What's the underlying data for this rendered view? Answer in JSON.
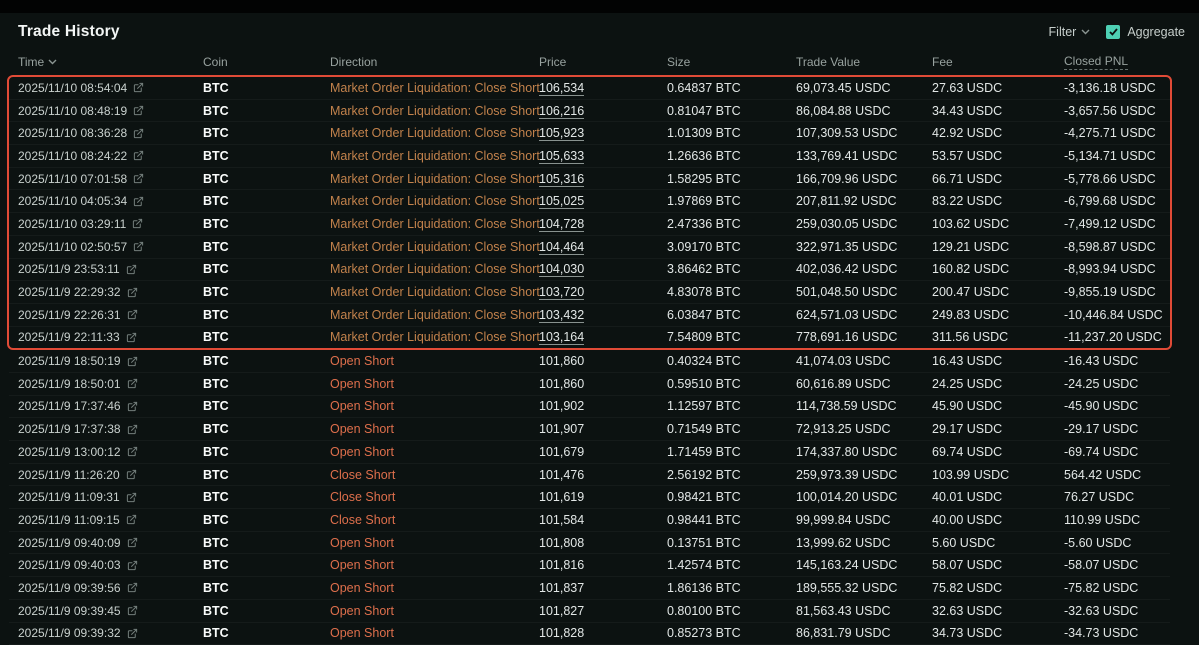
{
  "page": {
    "title": "Trade History"
  },
  "toolbar": {
    "filter_label": "Filter",
    "aggregate_label": "Aggregate",
    "aggregate_checked": true
  },
  "icons": {
    "external_link": "external-link",
    "chevron_down": "chevron-down",
    "checkmark": "check"
  },
  "colors": {
    "background": "#0c1211",
    "highlight_box_border": "#e14b37",
    "liquidation_text": "#c2824c",
    "short_text": "#de6f4c",
    "checkbox_accent": "#4ed0b4"
  },
  "table": {
    "columns": [
      "Time",
      "Coin",
      "Direction",
      "Price",
      "Size",
      "Trade Value",
      "Fee",
      "Closed PNL"
    ],
    "rows": [
      {
        "time": "2025/11/10 08:54:04",
        "coin": "BTC",
        "direction": "Market Order Liquidation: Close Short",
        "dir": "liq",
        "price": "106,534",
        "price_u": true,
        "size": "0.64837 BTC",
        "value": "69,073.45 USDC",
        "fee": "27.63 USDC",
        "pnl": "-3,136.18 USDC",
        "hl": true
      },
      {
        "time": "2025/11/10 08:48:19",
        "coin": "BTC",
        "direction": "Market Order Liquidation: Close Short",
        "dir": "liq",
        "price": "106,216",
        "price_u": true,
        "size": "0.81047 BTC",
        "value": "86,084.88 USDC",
        "fee": "34.43 USDC",
        "pnl": "-3,657.56 USDC",
        "hl": true
      },
      {
        "time": "2025/11/10 08:36:28",
        "coin": "BTC",
        "direction": "Market Order Liquidation: Close Short",
        "dir": "liq",
        "price": "105,923",
        "price_u": true,
        "size": "1.01309 BTC",
        "value": "107,309.53 USDC",
        "fee": "42.92 USDC",
        "pnl": "-4,275.71 USDC",
        "hl": true
      },
      {
        "time": "2025/11/10 08:24:22",
        "coin": "BTC",
        "direction": "Market Order Liquidation: Close Short",
        "dir": "liq",
        "price": "105,633",
        "price_u": true,
        "size": "1.26636 BTC",
        "value": "133,769.41 USDC",
        "fee": "53.57 USDC",
        "pnl": "-5,134.71 USDC",
        "hl": true
      },
      {
        "time": "2025/11/10 07:01:58",
        "coin": "BTC",
        "direction": "Market Order Liquidation: Close Short",
        "dir": "liq",
        "price": "105,316",
        "price_u": true,
        "size": "1.58295 BTC",
        "value": "166,709.96 USDC",
        "fee": "66.71 USDC",
        "pnl": "-5,778.66 USDC",
        "hl": true
      },
      {
        "time": "2025/11/10 04:05:34",
        "coin": "BTC",
        "direction": "Market Order Liquidation: Close Short",
        "dir": "liq",
        "price": "105,025",
        "price_u": true,
        "size": "1.97869 BTC",
        "value": "207,811.92 USDC",
        "fee": "83.22 USDC",
        "pnl": "-6,799.68 USDC",
        "hl": true
      },
      {
        "time": "2025/11/10 03:29:11",
        "coin": "BTC",
        "direction": "Market Order Liquidation: Close Short",
        "dir": "liq",
        "price": "104,728",
        "price_u": true,
        "size": "2.47336 BTC",
        "value": "259,030.05 USDC",
        "fee": "103.62 USDC",
        "pnl": "-7,499.12 USDC",
        "hl": true
      },
      {
        "time": "2025/11/10 02:50:57",
        "coin": "BTC",
        "direction": "Market Order Liquidation: Close Short",
        "dir": "liq",
        "price": "104,464",
        "price_u": true,
        "size": "3.09170 BTC",
        "value": "322,971.35 USDC",
        "fee": "129.21 USDC",
        "pnl": "-8,598.87 USDC",
        "hl": true
      },
      {
        "time": "2025/11/9 23:53:11",
        "coin": "BTC",
        "direction": "Market Order Liquidation: Close Short",
        "dir": "liq",
        "price": "104,030",
        "price_u": true,
        "size": "3.86462 BTC",
        "value": "402,036.42 USDC",
        "fee": "160.82 USDC",
        "pnl": "-8,993.94 USDC",
        "hl": true
      },
      {
        "time": "2025/11/9 22:29:32",
        "coin": "BTC",
        "direction": "Market Order Liquidation: Close Short",
        "dir": "liq",
        "price": "103,720",
        "price_u": true,
        "size": "4.83078 BTC",
        "value": "501,048.50 USDC",
        "fee": "200.47 USDC",
        "pnl": "-9,855.19 USDC",
        "hl": true
      },
      {
        "time": "2025/11/9 22:26:31",
        "coin": "BTC",
        "direction": "Market Order Liquidation: Close Short",
        "dir": "liq",
        "price": "103,432",
        "price_u": true,
        "size": "6.03847 BTC",
        "value": "624,571.03 USDC",
        "fee": "249.83 USDC",
        "pnl": "-10,446.84 USDC",
        "hl": true
      },
      {
        "time": "2025/11/9 22:11:33",
        "coin": "BTC",
        "direction": "Market Order Liquidation: Close Short",
        "dir": "liq",
        "price": "103,164",
        "price_u": true,
        "size": "7.54809 BTC",
        "value": "778,691.16 USDC",
        "fee": "311.56 USDC",
        "pnl": "-11,237.20 USDC",
        "hl": true
      },
      {
        "time": "2025/11/9 18:50:19",
        "coin": "BTC",
        "direction": "Open Short",
        "dir": "open",
        "price": "101,860",
        "price_u": false,
        "size": "0.40324 BTC",
        "value": "41,074.03 USDC",
        "fee": "16.43 USDC",
        "pnl": "-16.43 USDC",
        "hl": false
      },
      {
        "time": "2025/11/9 18:50:01",
        "coin": "BTC",
        "direction": "Open Short",
        "dir": "open",
        "price": "101,860",
        "price_u": false,
        "size": "0.59510 BTC",
        "value": "60,616.89 USDC",
        "fee": "24.25 USDC",
        "pnl": "-24.25 USDC",
        "hl": false
      },
      {
        "time": "2025/11/9 17:37:46",
        "coin": "BTC",
        "direction": "Open Short",
        "dir": "open",
        "price": "101,902",
        "price_u": false,
        "size": "1.12597 BTC",
        "value": "114,738.59 USDC",
        "fee": "45.90 USDC",
        "pnl": "-45.90 USDC",
        "hl": false
      },
      {
        "time": "2025/11/9 17:37:38",
        "coin": "BTC",
        "direction": "Open Short",
        "dir": "open",
        "price": "101,907",
        "price_u": false,
        "size": "0.71549 BTC",
        "value": "72,913.25 USDC",
        "fee": "29.17 USDC",
        "pnl": "-29.17 USDC",
        "hl": false
      },
      {
        "time": "2025/11/9 13:00:12",
        "coin": "BTC",
        "direction": "Open Short",
        "dir": "open",
        "price": "101,679",
        "price_u": false,
        "size": "1.71459 BTC",
        "value": "174,337.80 USDC",
        "fee": "69.74 USDC",
        "pnl": "-69.74 USDC",
        "hl": false
      },
      {
        "time": "2025/11/9 11:26:20",
        "coin": "BTC",
        "direction": "Close Short",
        "dir": "close",
        "price": "101,476",
        "price_u": false,
        "size": "2.56192 BTC",
        "value": "259,973.39 USDC",
        "fee": "103.99 USDC",
        "pnl": "564.42 USDC",
        "hl": false
      },
      {
        "time": "2025/11/9 11:09:31",
        "coin": "BTC",
        "direction": "Close Short",
        "dir": "close",
        "price": "101,619",
        "price_u": false,
        "size": "0.98421 BTC",
        "value": "100,014.20 USDC",
        "fee": "40.01 USDC",
        "pnl": "76.27 USDC",
        "hl": false
      },
      {
        "time": "2025/11/9 11:09:15",
        "coin": "BTC",
        "direction": "Close Short",
        "dir": "close",
        "price": "101,584",
        "price_u": false,
        "size": "0.98441 BTC",
        "value": "99,999.84 USDC",
        "fee": "40.00 USDC",
        "pnl": "110.99 USDC",
        "hl": false
      },
      {
        "time": "2025/11/9 09:40:09",
        "coin": "BTC",
        "direction": "Open Short",
        "dir": "open",
        "price": "101,808",
        "price_u": false,
        "size": "0.13751 BTC",
        "value": "13,999.62 USDC",
        "fee": "5.60 USDC",
        "pnl": "-5.60 USDC",
        "hl": false
      },
      {
        "time": "2025/11/9 09:40:03",
        "coin": "BTC",
        "direction": "Open Short",
        "dir": "open",
        "price": "101,816",
        "price_u": false,
        "size": "1.42574 BTC",
        "value": "145,163.24 USDC",
        "fee": "58.07 USDC",
        "pnl": "-58.07 USDC",
        "hl": false
      },
      {
        "time": "2025/11/9 09:39:56",
        "coin": "BTC",
        "direction": "Open Short",
        "dir": "open",
        "price": "101,837",
        "price_u": false,
        "size": "1.86136 BTC",
        "value": "189,555.32 USDC",
        "fee": "75.82 USDC",
        "pnl": "-75.82 USDC",
        "hl": false
      },
      {
        "time": "2025/11/9 09:39:45",
        "coin": "BTC",
        "direction": "Open Short",
        "dir": "open",
        "price": "101,827",
        "price_u": false,
        "size": "0.80100 BTC",
        "value": "81,563.43 USDC",
        "fee": "32.63 USDC",
        "pnl": "-32.63 USDC",
        "hl": false
      },
      {
        "time": "2025/11/9 09:39:32",
        "coin": "BTC",
        "direction": "Open Short",
        "dir": "open",
        "price": "101,828",
        "price_u": false,
        "size": "0.85273 BTC",
        "value": "86,831.79 USDC",
        "fee": "34.73 USDC",
        "pnl": "-34.73 USDC",
        "hl": false
      }
    ]
  }
}
